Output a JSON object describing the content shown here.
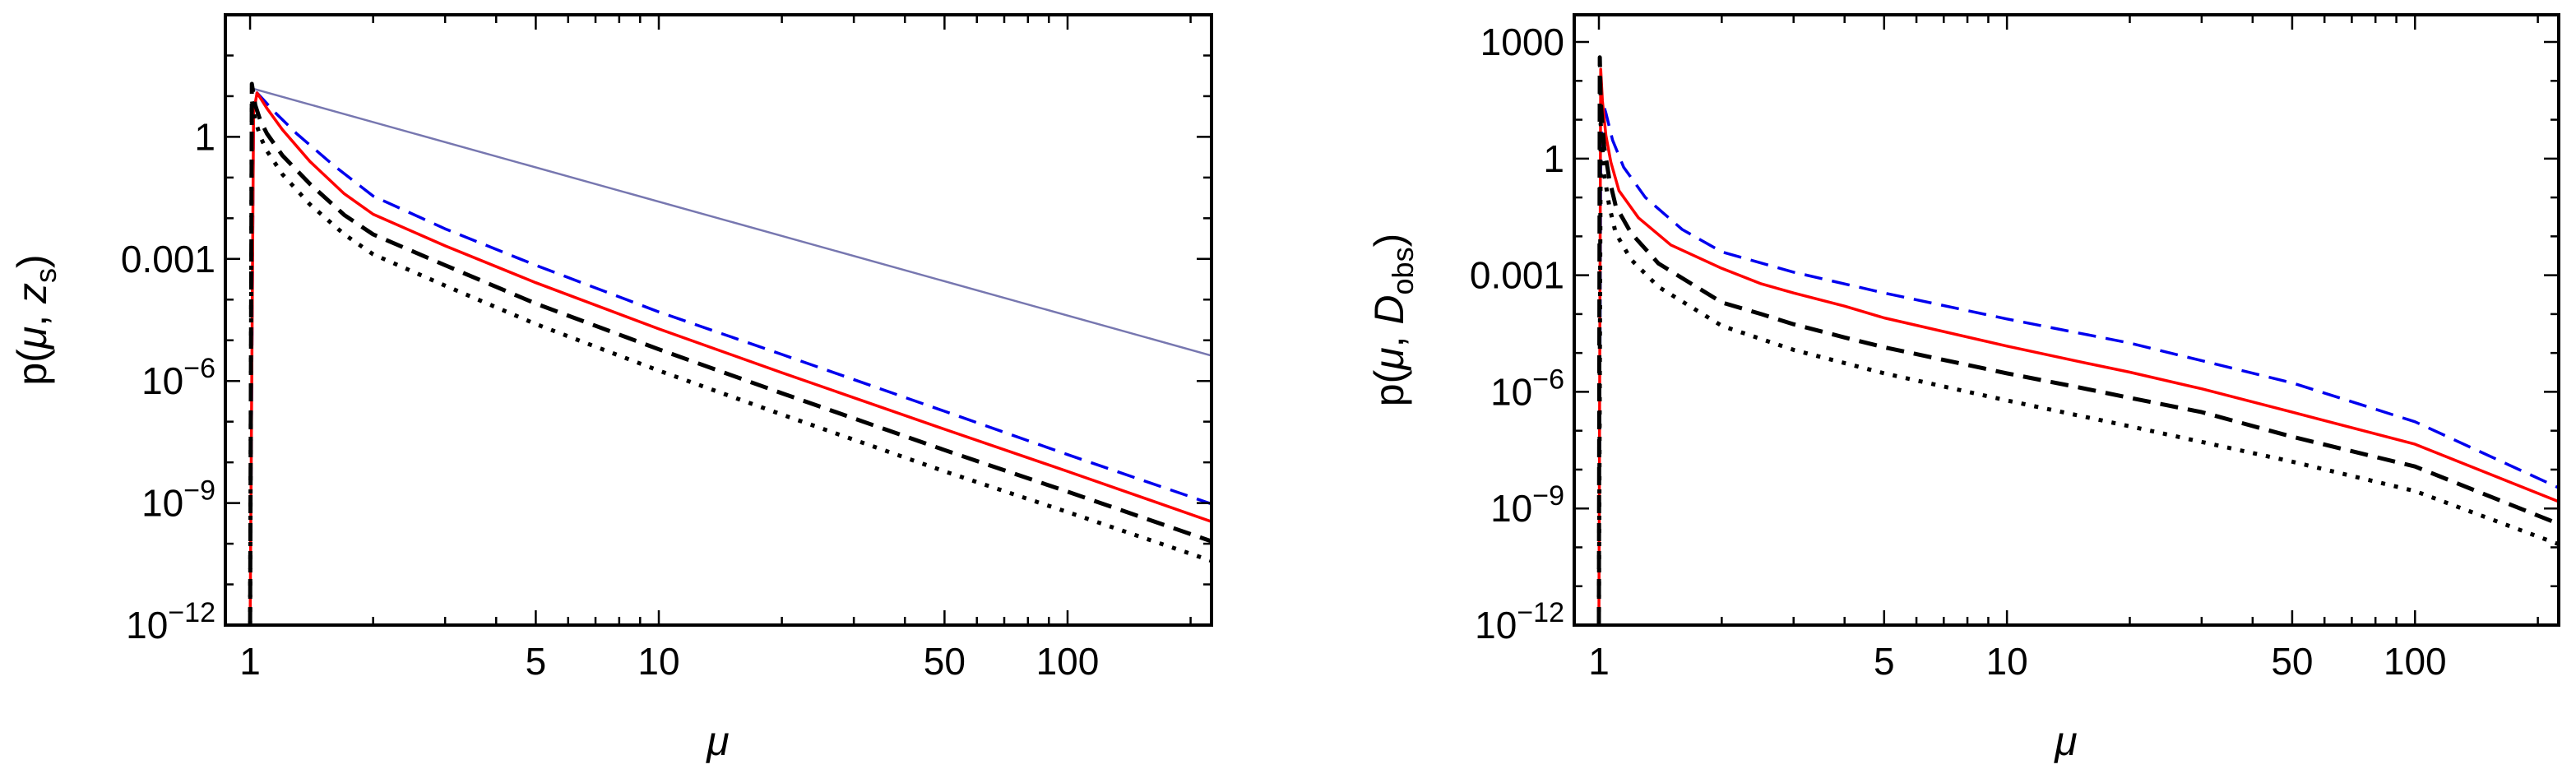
{
  "chart_data": [
    {
      "type": "line",
      "id": "left",
      "xscale": "log",
      "yscale": "log",
      "xlim": [
        0.87,
        225
      ],
      "ylim": [
        1e-12,
        1000
      ],
      "xticks": [
        {
          "value": 1,
          "label": "1"
        },
        {
          "value": 5,
          "label": "5"
        },
        {
          "value": 10,
          "label": "10"
        },
        {
          "value": 50,
          "label": "50"
        },
        {
          "value": 100,
          "label": "100"
        }
      ],
      "yticks": [
        {
          "value": 1,
          "base": "1",
          "exp": ""
        },
        {
          "value": 0.001,
          "base": "0.001",
          "exp": ""
        },
        {
          "value": 1e-06,
          "base": "10",
          "exp": "−6"
        },
        {
          "value": 1e-09,
          "base": "10",
          "exp": "−9"
        },
        {
          "value": 1e-12,
          "base": "10",
          "exp": "−12"
        }
      ],
      "xlabel": "μ",
      "ylabel": {
        "prefix": "p(",
        "var": "μ",
        "sep": ", ",
        "sym": "z",
        "sub": "s",
        "suffix": ")"
      },
      "series": [
        {
          "name": "power-law reference",
          "color": "#7777b0",
          "style": "solid",
          "width": 2.5,
          "x": [
            1.0,
            225
          ],
          "y": [
            16,
            4.2e-06
          ]
        },
        {
          "name": "blue dashed",
          "color": "#0000ee",
          "style": "dashed",
          "width": 3.5,
          "x": [
            1.0,
            1.02,
            1.04,
            1.08,
            1.15,
            1.3,
            1.6,
            2,
            3,
            5,
            10,
            20,
            50,
            100,
            225
          ],
          "y": [
            1e-12,
            5,
            12,
            8,
            4,
            1.2,
            0.2,
            0.035,
            0.0055,
            0.0007,
            5e-05,
            4.5e-06,
            1.8e-07,
            1.55e-08,
            9.5e-10
          ]
        },
        {
          "name": "red solid",
          "color": "#ff0000",
          "style": "solid",
          "width": 3.5,
          "x": [
            1.0,
            1.02,
            1.04,
            1.06,
            1.1,
            1.2,
            1.4,
            1.7,
            2,
            3,
            5,
            10,
            20,
            50,
            100,
            225
          ],
          "y": [
            1e-12,
            4,
            12,
            9,
            5,
            1.5,
            0.25,
            0.04,
            0.0125,
            0.0021,
            0.00026,
            1.9e-05,
            1.6e-06,
            6.5e-08,
            6e-09,
            3.5e-10
          ]
        },
        {
          "name": "black dashed",
          "color": "#000000",
          "style": "dashed",
          "width": 5,
          "x": [
            1.0,
            1.01,
            1.03,
            1.06,
            1.1,
            1.2,
            1.4,
            1.7,
            2,
            3,
            5,
            10,
            20,
            50,
            100,
            225
          ],
          "y": [
            1e-12,
            20,
            6,
            2.5,
            1.2,
            0.35,
            0.07,
            0.012,
            0.004,
            0.0007,
            8e-05,
            6e-06,
            5e-07,
            2e-08,
            1.9e-09,
            1.15e-10
          ]
        },
        {
          "name": "black dotted",
          "color": "#000000",
          "style": "dotted",
          "width": 5,
          "x": [
            1.0,
            1.01,
            1.03,
            1.06,
            1.1,
            1.2,
            1.4,
            1.7,
            2,
            3,
            5,
            10,
            20,
            50,
            100,
            225
          ],
          "y": [
            1e-12,
            8,
            2.5,
            1,
            0.45,
            0.12,
            0.022,
            0.004,
            0.0013,
            0.00022,
            2.5e-05,
            1.8e-06,
            1.5e-07,
            6e-09,
            6e-10,
            3.8e-11
          ]
        }
      ]
    },
    {
      "type": "line",
      "id": "right",
      "xscale": "log",
      "yscale": "log",
      "xlim": [
        0.87,
        225
      ],
      "ylim": [
        1e-12,
        5000
      ],
      "xticks": [
        {
          "value": 1,
          "label": "1"
        },
        {
          "value": 5,
          "label": "5"
        },
        {
          "value": 10,
          "label": "10"
        },
        {
          "value": 50,
          "label": "50"
        },
        {
          "value": 100,
          "label": "100"
        }
      ],
      "yticks": [
        {
          "value": 1000,
          "base": "1000",
          "exp": ""
        },
        {
          "value": 1,
          "base": "1",
          "exp": ""
        },
        {
          "value": 0.001,
          "base": "0.001",
          "exp": ""
        },
        {
          "value": 1e-06,
          "base": "10",
          "exp": "−6"
        },
        {
          "value": 1e-09,
          "base": "10",
          "exp": "−9"
        },
        {
          "value": 1e-12,
          "base": "10",
          "exp": "−12"
        }
      ],
      "xlabel": "μ",
      "ylabel": {
        "prefix": "p(",
        "var": "μ",
        "sep": ", ",
        "sym": "D",
        "sub": "obs",
        "suffix": ")"
      },
      "series": [
        {
          "name": "blue dashed",
          "color": "#0000ee",
          "style": "dashed",
          "width": 3.5,
          "x": [
            1.0,
            1.01,
            1.02,
            1.04,
            1.08,
            1.15,
            1.3,
            1.6,
            2,
            3,
            5,
            10,
            20,
            50,
            100,
            225
          ],
          "y": [
            1e-12,
            0.5,
            30,
            15,
            3,
            0.6,
            0.1,
            0.015,
            0.004,
            0.0012,
            0.00035,
            7.5e-05,
            1.8e-05,
            1.7e-06,
            1.7e-07,
            3.4e-09
          ]
        },
        {
          "name": "red solid",
          "color": "#ff0000",
          "style": "solid",
          "width": 3.5,
          "x": [
            1.0,
            1.01,
            1.02,
            1.04,
            1.07,
            1.12,
            1.25,
            1.5,
            2,
            2.5,
            3,
            4,
            5,
            10,
            15,
            20,
            30,
            50,
            100,
            225
          ],
          "y": [
            1e-12,
            200,
            30,
            4,
            0.8,
            0.15,
            0.03,
            0.006,
            0.0015,
            0.0006,
            0.00035,
            0.00016,
            8e-05,
            1.5e-05,
            6e-06,
            3.2e-06,
            1.2e-06,
            3e-07,
            4.5e-08,
            1.5e-09
          ]
        },
        {
          "name": "black dashed",
          "color": "#000000",
          "style": "dashed",
          "width": 5,
          "x": [
            1.0,
            1.005,
            1.01,
            1.03,
            1.06,
            1.1,
            1.2,
            1.4,
            2,
            2.5,
            3,
            4,
            5,
            10,
            15,
            20,
            30,
            50,
            100,
            225
          ],
          "y": [
            1e-12,
            400,
            30,
            2,
            0.3,
            0.06,
            0.012,
            0.002,
            0.0002,
            0.0001,
            5.5e-05,
            2.5e-05,
            1.4e-05,
            3e-06,
            1.3e-06,
            7e-07,
            3e-07,
            7e-08,
            1.2e-08,
            4e-10
          ]
        },
        {
          "name": "black dotted",
          "color": "#000000",
          "style": "dotted",
          "width": 5,
          "x": [
            1.0,
            1.01,
            1.03,
            1.06,
            1.1,
            1.2,
            1.4,
            2,
            3,
            5,
            10,
            20,
            50,
            100,
            225
          ],
          "y": [
            1e-12,
            8,
            0.4,
            0.06,
            0.012,
            0.0025,
            0.0005,
            5e-05,
            1.2e-05,
            3e-06,
            6e-07,
            1.3e-07,
            1.6e-08,
            2.8e-09,
            1.2e-10
          ]
        }
      ]
    }
  ]
}
